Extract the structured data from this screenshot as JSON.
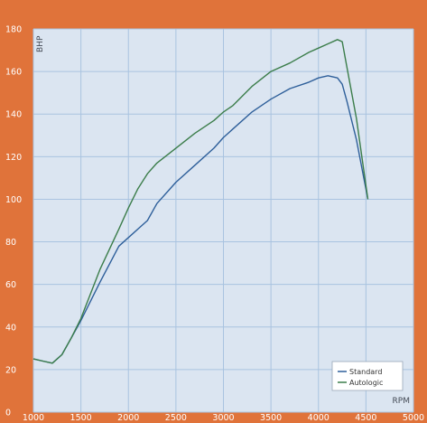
{
  "chart_data": {
    "type": "line",
    "title": "",
    "xlabel": "RPM",
    "ylabel": "BHP",
    "xlim": [
      1000,
      5000
    ],
    "ylim": [
      0,
      180
    ],
    "xticks": [
      1000,
      1500,
      2000,
      2500,
      3000,
      3500,
      4000,
      4500,
      5000
    ],
    "yticks": [
      0,
      20,
      40,
      60,
      80,
      100,
      120,
      140,
      160,
      180
    ],
    "grid": true,
    "legend_position": "bottom-right",
    "colors": {
      "background": "#e0733a",
      "plot_area": "#dbe5f1",
      "grid": "#a9c3e0",
      "standard": "#2e5f9a",
      "autologic": "#3b7d4a"
    },
    "series": [
      {
        "name": "Standard",
        "color": "#2e5f9a",
        "points": [
          [
            1000,
            25
          ],
          [
            1100,
            24
          ],
          [
            1200,
            23
          ],
          [
            1300,
            27
          ],
          [
            1400,
            35
          ],
          [
            1500,
            43
          ],
          [
            1700,
            61
          ],
          [
            1900,
            78
          ],
          [
            2000,
            82
          ],
          [
            2100,
            86
          ],
          [
            2200,
            90
          ],
          [
            2300,
            98
          ],
          [
            2500,
            108
          ],
          [
            2700,
            116
          ],
          [
            2900,
            124
          ],
          [
            3000,
            129
          ],
          [
            3100,
            133
          ],
          [
            3300,
            141
          ],
          [
            3500,
            147
          ],
          [
            3700,
            152
          ],
          [
            3900,
            155
          ],
          [
            4000,
            157
          ],
          [
            4100,
            158
          ],
          [
            4200,
            157
          ],
          [
            4250,
            154
          ],
          [
            4300,
            146
          ],
          [
            4400,
            128
          ],
          [
            4520,
            100
          ]
        ]
      },
      {
        "name": "Autologic",
        "color": "#3b7d4a",
        "points": [
          [
            1000,
            25
          ],
          [
            1100,
            24
          ],
          [
            1200,
            23
          ],
          [
            1300,
            27
          ],
          [
            1400,
            35
          ],
          [
            1500,
            44
          ],
          [
            1700,
            67
          ],
          [
            1900,
            86
          ],
          [
            2000,
            96
          ],
          [
            2100,
            105
          ],
          [
            2200,
            112
          ],
          [
            2300,
            117
          ],
          [
            2500,
            124
          ],
          [
            2700,
            131
          ],
          [
            2900,
            137
          ],
          [
            3000,
            141
          ],
          [
            3100,
            144
          ],
          [
            3300,
            153
          ],
          [
            3500,
            160
          ],
          [
            3700,
            164
          ],
          [
            3900,
            169
          ],
          [
            4000,
            171
          ],
          [
            4100,
            173
          ],
          [
            4200,
            175
          ],
          [
            4250,
            174
          ],
          [
            4300,
            162
          ],
          [
            4400,
            138
          ],
          [
            4520,
            100
          ]
        ]
      }
    ]
  }
}
